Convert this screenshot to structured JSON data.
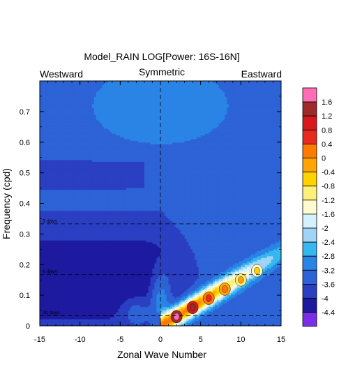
{
  "chart_data": {
    "type": "heatmap",
    "title": "Model_RAIN LOG[Power: 16S-16N]",
    "header_left": "Westward",
    "header_center": "Symmetric",
    "header_right": "Eastward",
    "xlabel": "Zonal Wave Number",
    "ylabel": "Frequency (cpd)",
    "xlim": [
      -15,
      15
    ],
    "ylim": [
      0,
      0.8
    ],
    "x_ticks": [
      -15,
      -10,
      -5,
      0,
      5,
      10,
      15
    ],
    "y_ticks": [
      0,
      0.1,
      0.2,
      0.3,
      0.4,
      0.5,
      0.6,
      0.7
    ],
    "x_tick_labels": [
      "-15",
      "-10",
      "-5",
      "0",
      "5",
      "10",
      "15"
    ],
    "y_tick_labels": [
      "0",
      "0.1",
      "0.2",
      "0.3",
      "0.4",
      "0.5",
      "0.6",
      "0.7"
    ],
    "period_lines": [
      {
        "freq": 0.333,
        "label": "3 days"
      },
      {
        "freq": 0.167,
        "label": "6 days"
      },
      {
        "freq": 0.033,
        "label": "30 days"
      }
    ],
    "zero_wavenumber_line": 0,
    "colorbar": {
      "levels": [
        "1.6",
        "1.2",
        "0.8",
        "0.4",
        "0",
        "-0.4",
        "-0.8",
        "-1.2",
        "-1.6",
        "-2",
        "-2.4",
        "-2.8",
        "-3.2",
        "-3.6",
        "-4",
        "-4.4"
      ],
      "colors": [
        "#ff6eb4",
        "#9e2a2a",
        "#d7191c",
        "#e8291e",
        "#ff7a00",
        "#ffa500",
        "#ffd200",
        "#fff07a",
        "#fffbd0",
        "#d4f1ff",
        "#9fd4f7",
        "#36b7f0",
        "#2a84e6",
        "#2d63d6",
        "#2a3fc2",
        "#1d1aa0",
        "#7b2ee8"
      ]
    },
    "description_values": {
      "background_level": -3.6,
      "low_wavenumber_low_freq_level": -4.2,
      "peak_maxima": [
        {
          "k": 2,
          "f": 0.03,
          "value": 1.4
        },
        {
          "k": 4,
          "f": 0.06,
          "value": 0.9
        },
        {
          "k": 6,
          "f": 0.09,
          "value": 0.2
        },
        {
          "k": 8,
          "f": 0.12,
          "value": -0.4
        },
        {
          "k": 10,
          "f": 0.15,
          "value": -0.9
        },
        {
          "k": 12,
          "f": 0.18,
          "value": -1.3
        }
      ]
    }
  }
}
